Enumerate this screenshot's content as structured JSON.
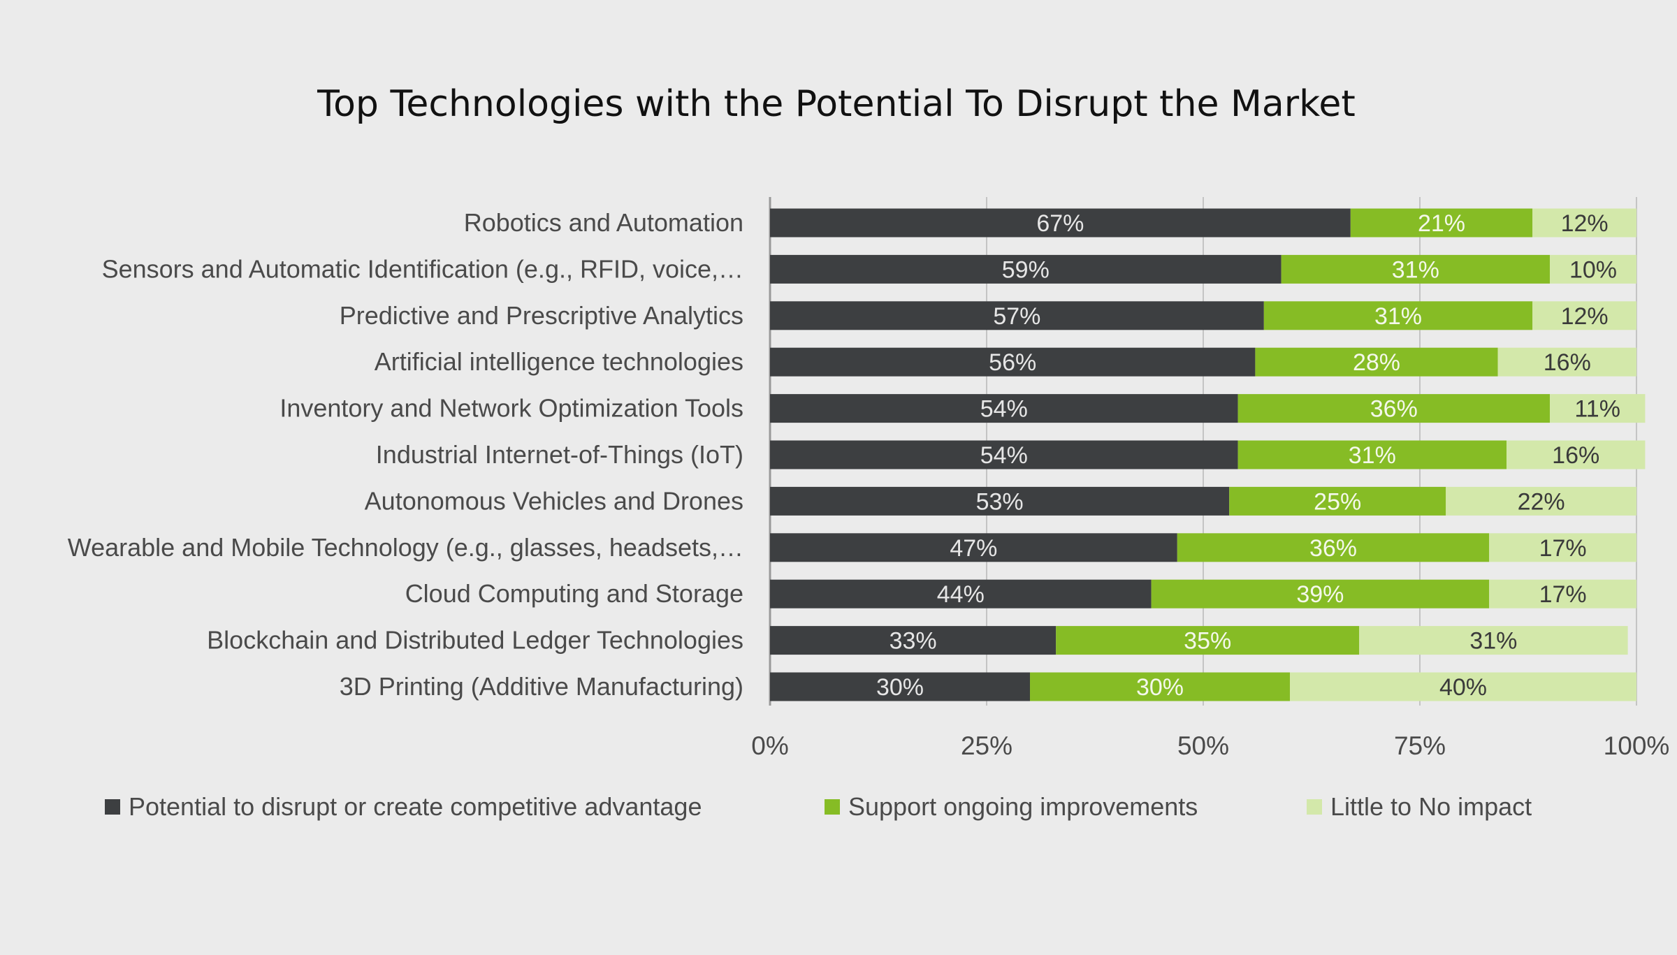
{
  "chart_data": {
    "type": "bar",
    "orientation": "horizontal",
    "stacked": true,
    "title": "Top Technologies with the Potential To Disrupt the Market",
    "categories": [
      "Robotics and Automation",
      "Sensors and Automatic Identification (e.g., RFID, voice,…",
      "Predictive and Prescriptive Analytics",
      "Artificial intelligence technologies",
      "Inventory and Network Optimization Tools",
      "Industrial Internet-of-Things (IoT)",
      "Autonomous Vehicles and Drones",
      "Wearable and Mobile Technology (e.g., glasses, headsets,…",
      "Cloud Computing and Storage",
      "Blockchain and Distributed Ledger Technologies",
      "3D Printing (Additive Manufacturing)"
    ],
    "series": [
      {
        "name": "Potential to disrupt or create competitive advantage",
        "color": "#3d3f41",
        "label_color": "#e6e6e6",
        "values": [
          67,
          59,
          57,
          56,
          54,
          54,
          53,
          47,
          44,
          33,
          30
        ]
      },
      {
        "name": "Support ongoing improvements",
        "color": "#86bc25",
        "label_color": "#f4f8ea",
        "values": [
          21,
          31,
          31,
          28,
          36,
          31,
          25,
          36,
          39,
          35,
          30
        ]
      },
      {
        "name": "Little to No impact",
        "color": "#d3e8aa",
        "label_color": "#3a3a3a",
        "values": [
          12,
          10,
          12,
          16,
          11,
          16,
          22,
          17,
          17,
          31,
          40
        ]
      }
    ],
    "value_suffix": "%",
    "xlim": [
      0,
      100
    ],
    "xticks": [
      0,
      25,
      50,
      75,
      100
    ],
    "xtick_labels": [
      "0%",
      "25%",
      "50%",
      "75%",
      "100%"
    ],
    "grid": "vertical",
    "legend": "bottom",
    "xlabel": "",
    "ylabel": ""
  }
}
